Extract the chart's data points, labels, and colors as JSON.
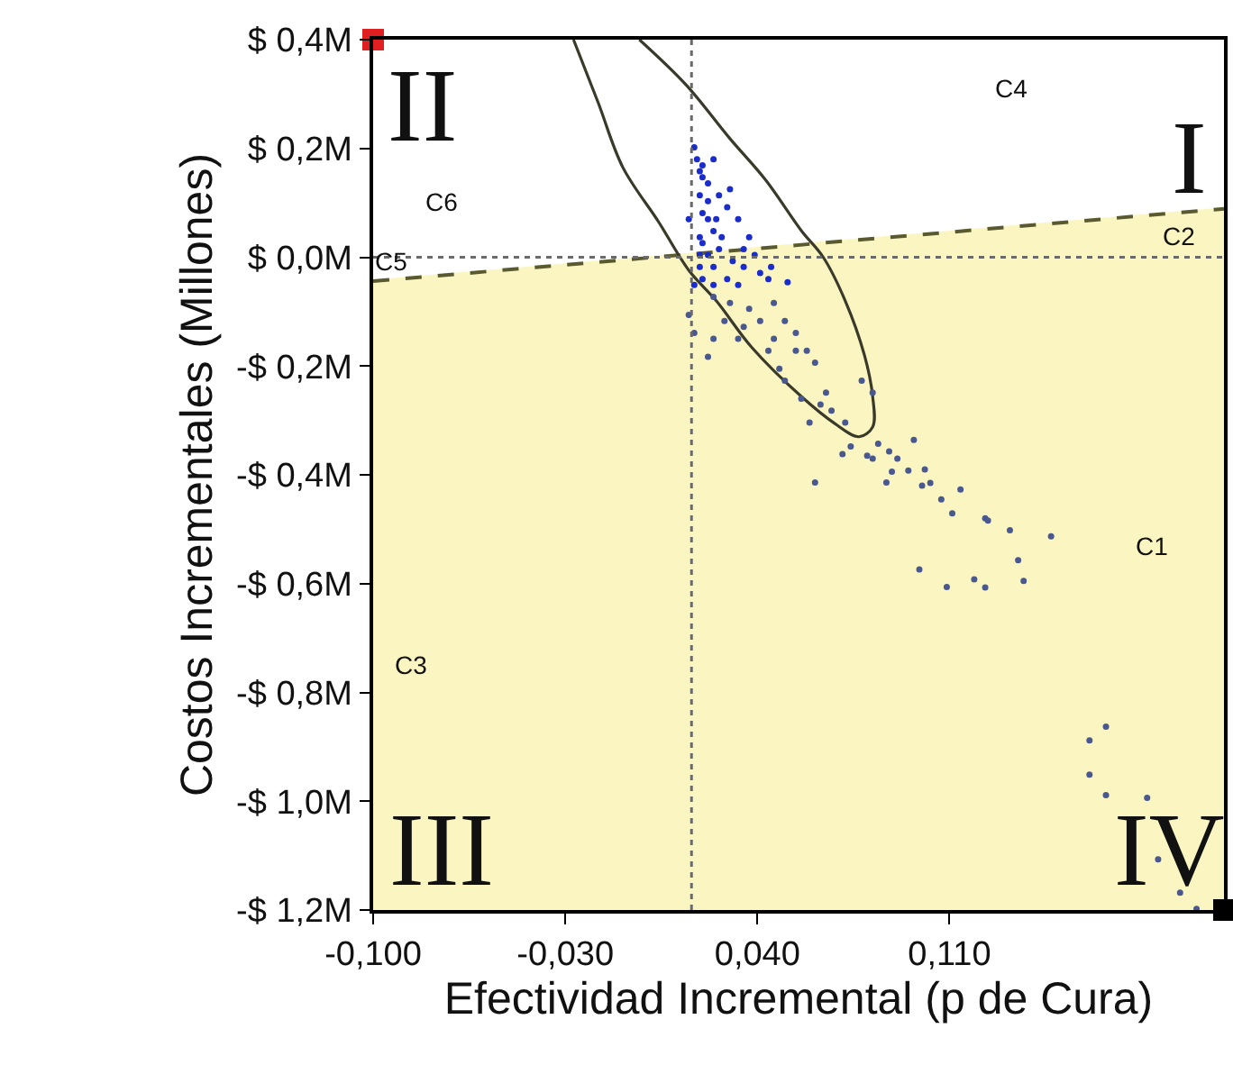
{
  "chart_data": {
    "type": "scatter",
    "xlabel": "Efectividad Incremental (p de Cura)",
    "ylabel": "Costos Incrementales (Millones)",
    "xlim": [
      -0.1,
      0.21
    ],
    "ylim": [
      -1.2,
      0.4
    ],
    "xticks": [
      {
        "value": -0.1,
        "label": "-0,100"
      },
      {
        "value": -0.03,
        "label": "-0,030"
      },
      {
        "value": 0.04,
        "label": "0,040"
      },
      {
        "value": 0.11,
        "label": "0,110"
      }
    ],
    "yticks": [
      {
        "value": 0.4,
        "label": "$ 0,4M"
      },
      {
        "value": 0.2,
        "label": "$ 0,2M"
      },
      {
        "value": 0.0,
        "label": "$ 0,0M"
      },
      {
        "value": -0.2,
        "label": "-$ 0,2M"
      },
      {
        "value": -0.4,
        "label": "-$ 0,4M"
      },
      {
        "value": -0.6,
        "label": "-$ 0,6M"
      },
      {
        "value": -0.8,
        "label": "-$ 0,8M"
      },
      {
        "value": -1.0,
        "label": "-$ 1,0M"
      },
      {
        "value": -1.2,
        "label": "-$ 1,2M"
      }
    ],
    "series": [
      {
        "type": "line",
        "color": "#fbf5c2",
        "x": [
          -0.1,
          0.21
        ],
        "values": [
          -0.044,
          0.089
        ],
        "lower": [
          -1.2,
          -1.2
        ],
        "upper": [
          -0.044,
          0.089
        ]
      },
      {
        "type": "line",
        "line_style": "dashed",
        "color": "#5a5a30",
        "x": [
          -0.1,
          0.21
        ],
        "values": [
          -0.044,
          0.089
        ]
      },
      {
        "type": "line",
        "line_style": "solid",
        "color": "#3a3a2a",
        "x": [
          -0.027,
          -0.018,
          -0.009,
          0.004,
          0.015,
          0.025,
          0.038,
          0.056,
          0.068,
          0.077,
          0.082,
          0.082,
          0.079,
          0.072,
          0.064,
          0.056,
          0.043,
          0.03,
          0.014,
          -0.003
        ],
        "values": [
          0.4,
          0.284,
          0.165,
          0.065,
          -0.024,
          -0.08,
          -0.166,
          -0.256,
          -0.305,
          -0.33,
          -0.312,
          -0.256,
          -0.18,
          -0.08,
          0.0,
          0.049,
          0.142,
          0.218,
          0.317,
          0.4
        ]
      },
      {
        "marker": "circle",
        "color": "#1a2ccc",
        "x": [
          0.017,
          0.018,
          0.019,
          0.02,
          0.022,
          0.024,
          0.026,
          0.019,
          0.02,
          0.022,
          0.024,
          0.029,
          0.033,
          0.037,
          0.02,
          0.022,
          0.026,
          0.031,
          0.035,
          0.041,
          0.045,
          0.019,
          0.02,
          0.024,
          0.029,
          0.033,
          0.017,
          0.02,
          0.022,
          0.025,
          0.027,
          0.03,
          0.035,
          0.039,
          0.044,
          0.051,
          0.019,
          0.019,
          0.024,
          0.015
        ],
        "values": [
          0.202,
          0.18,
          0.158,
          0.169,
          0.136,
          0.18,
          0.114,
          0.114,
          0.081,
          0.07,
          0.048,
          0.092,
          0.07,
          0.037,
          0.026,
          0.004,
          0.015,
          -0.007,
          -0.018,
          -0.029,
          -0.018,
          -0.018,
          -0.04,
          -0.051,
          -0.04,
          -0.051,
          -0.051,
          0.147,
          0.103,
          0.07,
          0.037,
          0.125,
          0.015,
          0.004,
          -0.04,
          -0.046,
          0.037,
          0.004,
          -0.018,
          0.07
        ]
      },
      {
        "marker": "circle",
        "color": "#4a5890",
        "x": [
          0.024,
          0.03,
          0.037,
          0.046,
          0.028,
          0.035,
          0.041,
          0.046,
          0.05,
          0.054,
          0.058,
          0.033,
          0.044,
          0.048,
          0.054,
          0.061,
          0.024,
          0.05,
          0.056,
          0.063,
          0.067,
          0.065,
          0.059,
          0.072,
          0.078,
          0.082,
          0.074,
          0.082,
          0.091,
          0.095,
          0.087,
          0.1,
          0.015,
          0.017,
          0.022,
          0.061,
          0.071,
          0.08,
          0.084,
          0.088,
          0.089,
          0.097,
          0.101,
          0.103,
          0.107,
          0.111,
          0.114,
          0.123,
          0.124,
          0.132,
          0.135,
          0.137,
          0.147,
          0.099,
          0.109,
          0.119,
          0.123,
          0.161,
          0.167,
          0.161,
          0.167,
          0.182,
          0.186,
          0.194,
          0.2
        ],
        "values": [
          -0.073,
          -0.084,
          -0.095,
          -0.084,
          -0.117,
          -0.128,
          -0.117,
          -0.15,
          -0.117,
          -0.139,
          -0.172,
          -0.15,
          -0.172,
          -0.205,
          -0.172,
          -0.194,
          -0.15,
          -0.227,
          -0.26,
          -0.271,
          -0.282,
          -0.249,
          -0.304,
          -0.304,
          -0.227,
          -0.249,
          -0.348,
          -0.37,
          -0.37,
          -0.392,
          -0.414,
          -0.42,
          -0.106,
          -0.139,
          -0.183,
          -0.414,
          -0.362,
          -0.365,
          -0.343,
          -0.357,
          -0.394,
          -0.336,
          -0.39,
          -0.415,
          -0.445,
          -0.471,
          -0.427,
          -0.48,
          -0.484,
          -0.502,
          -0.557,
          -0.595,
          -0.513,
          -0.574,
          -0.606,
          -0.592,
          -0.607,
          -0.888,
          -0.863,
          -0.951,
          -0.989,
          -0.994,
          -1.107,
          -1.168,
          -1.198
        ]
      },
      {
        "marker": "square",
        "colors": [
          "#e02020",
          "#000000"
        ],
        "x": [
          -0.1,
          0.21
        ],
        "values": [
          0.4,
          -1.2
        ]
      }
    ],
    "ref_lines": [
      {
        "axis": "x",
        "value": 0.016,
        "line_style": "dotted",
        "color": "#6a6a6a"
      },
      {
        "axis": "y",
        "value": 0.0,
        "line_style": "dotted",
        "color": "#6a6a6a"
      }
    ],
    "annotations": [
      "II",
      "I",
      "III",
      "IV",
      "C4",
      "C6",
      "C5",
      "C2",
      "C1",
      "C3"
    ]
  }
}
